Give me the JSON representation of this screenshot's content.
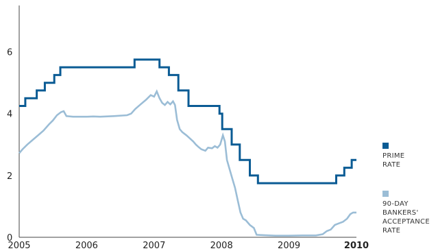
{
  "chart_data": {
    "type": "line",
    "title": "",
    "xlabel": "",
    "ylabel": "",
    "xlim": [
      2005.0,
      2010.0
    ],
    "ylim": [
      0,
      7.5
    ],
    "x_ticks": [
      {
        "value": 2005,
        "label": "2005",
        "bold": false
      },
      {
        "value": 2006,
        "label": "2006",
        "bold": false
      },
      {
        "value": 2007,
        "label": "2007",
        "bold": false
      },
      {
        "value": 2008,
        "label": "2008",
        "bold": false
      },
      {
        "value": 2009,
        "label": "2009",
        "bold": false
      },
      {
        "value": 2010,
        "label": "2010",
        "bold": true
      }
    ],
    "y_ticks": [
      0,
      2,
      4,
      6
    ],
    "grid": false,
    "legend_position": "right",
    "series": [
      {
        "name": "PRIME\nRATE",
        "color": "#0a5b94",
        "style": "step",
        "points": [
          [
            2005.0,
            4.25
          ],
          [
            2005.09,
            4.5
          ],
          [
            2005.26,
            4.75
          ],
          [
            2005.38,
            5.0
          ],
          [
            2005.52,
            5.25
          ],
          [
            2005.61,
            5.5
          ],
          [
            2006.71,
            5.75
          ],
          [
            2007.08,
            5.5
          ],
          [
            2007.22,
            5.25
          ],
          [
            2007.36,
            4.75
          ],
          [
            2007.51,
            4.25
          ],
          [
            2007.97,
            4.0
          ],
          [
            2008.01,
            3.5
          ],
          [
            2008.15,
            3.0
          ],
          [
            2008.27,
            2.5
          ],
          [
            2008.42,
            2.0
          ],
          [
            2008.54,
            1.75
          ],
          [
            2009.7,
            2.0
          ],
          [
            2009.82,
            2.25
          ],
          [
            2009.93,
            2.5
          ],
          [
            2010.0,
            2.5
          ]
        ]
      },
      {
        "name": "90-DAY\nBANKERS'\nACCEPTANCE\nRATE",
        "color": "#9bbdd6",
        "style": "line",
        "points": [
          [
            2005.0,
            2.72
          ],
          [
            2005.05,
            2.85
          ],
          [
            2005.12,
            3.0
          ],
          [
            2005.2,
            3.15
          ],
          [
            2005.28,
            3.3
          ],
          [
            2005.36,
            3.45
          ],
          [
            2005.44,
            3.65
          ],
          [
            2005.5,
            3.78
          ],
          [
            2005.56,
            3.95
          ],
          [
            2005.62,
            4.05
          ],
          [
            2005.66,
            4.08
          ],
          [
            2005.7,
            3.92
          ],
          [
            2005.8,
            3.9
          ],
          [
            2006.0,
            3.9
          ],
          [
            2006.1,
            3.91
          ],
          [
            2006.2,
            3.9
          ],
          [
            2006.4,
            3.92
          ],
          [
            2006.6,
            3.95
          ],
          [
            2006.66,
            4.0
          ],
          [
            2006.72,
            4.15
          ],
          [
            2006.8,
            4.3
          ],
          [
            2006.88,
            4.45
          ],
          [
            2006.95,
            4.6
          ],
          [
            2007.0,
            4.55
          ],
          [
            2007.04,
            4.72
          ],
          [
            2007.08,
            4.5
          ],
          [
            2007.12,
            4.35
          ],
          [
            2007.16,
            4.28
          ],
          [
            2007.2,
            4.38
          ],
          [
            2007.24,
            4.3
          ],
          [
            2007.28,
            4.4
          ],
          [
            2007.31,
            4.28
          ],
          [
            2007.34,
            3.8
          ],
          [
            2007.38,
            3.5
          ],
          [
            2007.42,
            3.4
          ],
          [
            2007.48,
            3.3
          ],
          [
            2007.53,
            3.2
          ],
          [
            2007.58,
            3.1
          ],
          [
            2007.62,
            3.0
          ],
          [
            2007.66,
            2.92
          ],
          [
            2007.7,
            2.85
          ],
          [
            2007.76,
            2.8
          ],
          [
            2007.8,
            2.9
          ],
          [
            2007.86,
            2.88
          ],
          [
            2007.9,
            2.95
          ],
          [
            2007.94,
            2.9
          ],
          [
            2007.98,
            3.0
          ],
          [
            2008.02,
            3.3
          ],
          [
            2008.05,
            3.1
          ],
          [
            2008.08,
            2.5
          ],
          [
            2008.12,
            2.2
          ],
          [
            2008.16,
            1.9
          ],
          [
            2008.2,
            1.6
          ],
          [
            2008.24,
            1.2
          ],
          [
            2008.28,
            0.8
          ],
          [
            2008.32,
            0.6
          ],
          [
            2008.36,
            0.55
          ],
          [
            2008.42,
            0.4
          ],
          [
            2008.48,
            0.3
          ],
          [
            2008.52,
            0.08
          ],
          [
            2008.6,
            0.07
          ],
          [
            2008.8,
            0.05
          ],
          [
            2009.0,
            0.05
          ],
          [
            2009.2,
            0.06
          ],
          [
            2009.4,
            0.06
          ],
          [
            2009.5,
            0.1
          ],
          [
            2009.56,
            0.2
          ],
          [
            2009.62,
            0.25
          ],
          [
            2009.68,
            0.4
          ],
          [
            2009.74,
            0.45
          ],
          [
            2009.8,
            0.5
          ],
          [
            2009.86,
            0.6
          ],
          [
            2009.91,
            0.75
          ],
          [
            2009.95,
            0.8
          ],
          [
            2010.0,
            0.8
          ]
        ]
      }
    ]
  }
}
